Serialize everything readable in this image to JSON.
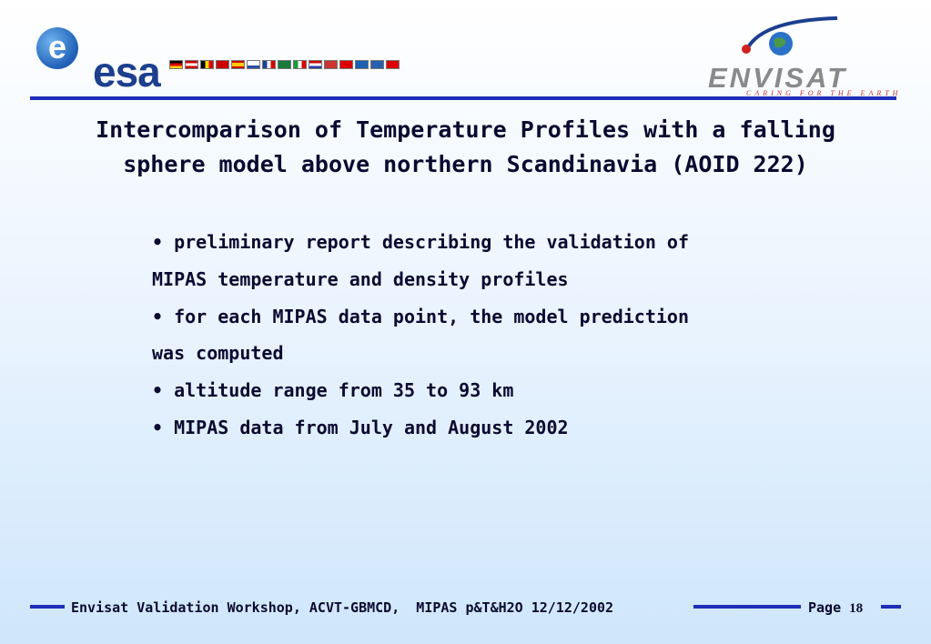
{
  "header": {
    "esa_logo_text": "esa",
    "envisat_logo_text": "ENVISAT",
    "envisat_tagline": "CARING FOR THE EARTH"
  },
  "title": {
    "line1": "Intercomparison of Temperature Profiles with a falling",
    "line2": "sphere model above northern Scandinavia (AOID 222)"
  },
  "bullets": [
    "• preliminary report describing the validation of",
    "MIPAS temperature and density profiles",
    "• for each MIPAS data point, the model prediction",
    "was computed",
    "• altitude range from 35 to 93 km",
    "• MIPAS data from July and August 2002"
  ],
  "footer": {
    "text": "Envisat Validation Workshop, ACVT-GBMCD,  MIPAS p&T&H2O 12/12/2002",
    "page_label": "Page",
    "page_number": "18"
  },
  "colors": {
    "accent": "#1e2fb8",
    "esa_blue": "#1c3f8e",
    "text": "#0a0a30"
  }
}
